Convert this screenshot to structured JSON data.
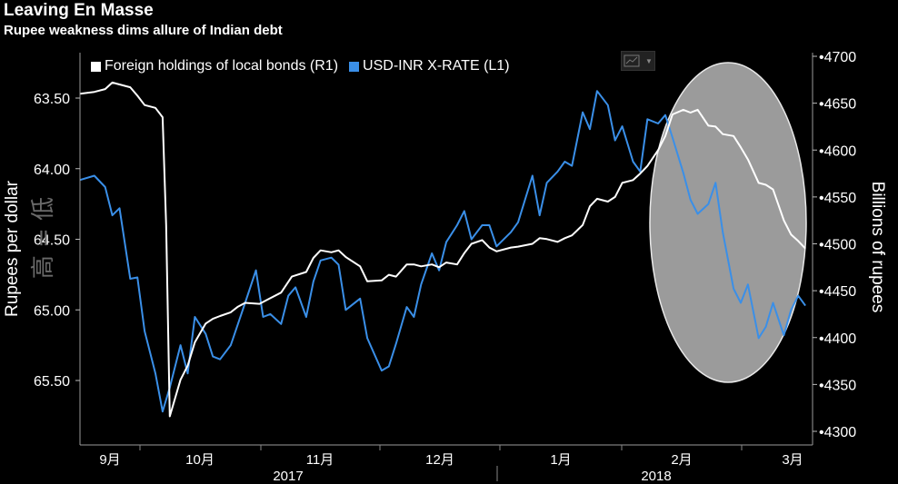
{
  "title": "Leaving En Masse",
  "subtitle": "Rupee weakness dims allure of Indian debt",
  "chart_data": {
    "type": "line",
    "legend": "top-left",
    "grid": false,
    "y_left": {
      "label": "Rupees per dollar",
      "range": [
        63.2,
        66.0
      ],
      "inverted": true,
      "ticks": [
        "63.50",
        "64.00",
        "64.50",
        "65.00",
        "65.50"
      ],
      "annotation": "高 = 低"
    },
    "y_right": {
      "label": "Billions of rupees",
      "range": [
        4290,
        4710
      ],
      "ticks": [
        "4700",
        "4650",
        "4600",
        "4550",
        "4500",
        "4450",
        "4400",
        "4350",
        "4300"
      ]
    },
    "x": {
      "months": [
        "9月",
        "10月",
        "11月",
        "12月",
        "1月",
        "2月",
        "3月"
      ],
      "years": [
        "2017",
        "2018"
      ],
      "range": [
        "2017-08-28",
        "2018-03-20"
      ]
    },
    "series": [
      {
        "name": "Foreign holdings of local bonds (R1)",
        "axis": "right",
        "color": "#ffffff",
        "points": [
          [
            "2017-08-28",
            4660
          ],
          [
            "2017-09-01",
            4662
          ],
          [
            "2017-09-04",
            4665
          ],
          [
            "2017-09-06",
            4672
          ],
          [
            "2017-09-08",
            4670
          ],
          [
            "2017-09-11",
            4667
          ],
          [
            "2017-09-13",
            4658
          ],
          [
            "2017-09-15",
            4648
          ],
          [
            "2017-09-18",
            4645
          ],
          [
            "2017-09-20",
            4635
          ],
          [
            "2017-09-21",
            4520
          ],
          [
            "2017-09-22",
            4316
          ],
          [
            "2017-09-25",
            4355
          ],
          [
            "2017-09-27",
            4370
          ],
          [
            "2017-09-29",
            4395
          ],
          [
            "2017-10-02",
            4415
          ],
          [
            "2017-10-04",
            4420
          ],
          [
            "2017-10-06",
            4423
          ],
          [
            "2017-10-09",
            4427
          ],
          [
            "2017-10-11",
            4433
          ],
          [
            "2017-10-13",
            4437
          ],
          [
            "2017-10-17",
            4436
          ],
          [
            "2017-10-19",
            4440
          ],
          [
            "2017-10-23",
            4448
          ],
          [
            "2017-10-26",
            4465
          ],
          [
            "2017-10-30",
            4470
          ],
          [
            "2017-11-01",
            4485
          ],
          [
            "2017-11-03",
            4493
          ],
          [
            "2017-11-06",
            4491
          ],
          [
            "2017-11-08",
            4493
          ],
          [
            "2017-11-10",
            4486
          ],
          [
            "2017-11-14",
            4476
          ],
          [
            "2017-11-16",
            4460
          ],
          [
            "2017-11-20",
            4461
          ],
          [
            "2017-11-22",
            4467
          ],
          [
            "2017-11-24",
            4465
          ],
          [
            "2017-11-27",
            4478
          ],
          [
            "2017-11-29",
            4478
          ],
          [
            "2017-12-01",
            4476
          ],
          [
            "2017-12-04",
            4478
          ],
          [
            "2017-12-06",
            4475
          ],
          [
            "2017-12-08",
            4480
          ],
          [
            "2017-12-11",
            4478
          ],
          [
            "2017-12-13",
            4490
          ],
          [
            "2017-12-15",
            4500
          ],
          [
            "2017-12-18",
            4504
          ],
          [
            "2017-12-20",
            4496
          ],
          [
            "2017-12-22",
            4492
          ],
          [
            "2017-12-26",
            4496
          ],
          [
            "2017-12-28",
            4497
          ],
          [
            "2018-01-01",
            4500
          ],
          [
            "2018-01-03",
            4506
          ],
          [
            "2018-01-05",
            4505
          ],
          [
            "2018-01-08",
            4502
          ],
          [
            "2018-01-10",
            4506
          ],
          [
            "2018-01-12",
            4509
          ],
          [
            "2018-01-15",
            4520
          ],
          [
            "2018-01-17",
            4540
          ],
          [
            "2018-01-19",
            4548
          ],
          [
            "2018-01-22",
            4545
          ],
          [
            "2018-01-24",
            4550
          ],
          [
            "2018-01-26",
            4565
          ],
          [
            "2018-01-29",
            4568
          ],
          [
            "2018-01-31",
            4575
          ],
          [
            "2018-02-02",
            4583
          ],
          [
            "2018-02-05",
            4600
          ],
          [
            "2018-02-07",
            4615
          ],
          [
            "2018-02-09",
            4638
          ],
          [
            "2018-02-12",
            4643
          ],
          [
            "2018-02-14",
            4640
          ],
          [
            "2018-02-16",
            4643
          ],
          [
            "2018-02-19",
            4626
          ],
          [
            "2018-02-21",
            4625
          ],
          [
            "2018-02-23",
            4617
          ],
          [
            "2018-02-26",
            4615
          ],
          [
            "2018-02-28",
            4603
          ],
          [
            "2018-03-02",
            4590
          ],
          [
            "2018-03-05",
            4565
          ],
          [
            "2018-03-07",
            4563
          ],
          [
            "2018-03-09",
            4558
          ],
          [
            "2018-03-12",
            4525
          ],
          [
            "2018-03-14",
            4510
          ],
          [
            "2018-03-16",
            4503
          ],
          [
            "2018-03-18",
            4495
          ]
        ]
      },
      {
        "name": "USD-INR X-RATE (L1)",
        "axis": "left",
        "color": "#3a8fe8",
        "points": [
          [
            "2017-08-28",
            64.08
          ],
          [
            "2017-09-01",
            64.05
          ],
          [
            "2017-09-04",
            64.13
          ],
          [
            "2017-09-06",
            64.33
          ],
          [
            "2017-09-08",
            64.28
          ],
          [
            "2017-09-11",
            64.78
          ],
          [
            "2017-09-13",
            64.77
          ],
          [
            "2017-09-15",
            65.15
          ],
          [
            "2017-09-18",
            65.45
          ],
          [
            "2017-09-20",
            65.72
          ],
          [
            "2017-09-22",
            65.55
          ],
          [
            "2017-09-25",
            65.25
          ],
          [
            "2017-09-27",
            65.45
          ],
          [
            "2017-09-29",
            65.05
          ],
          [
            "2017-10-02",
            65.17
          ],
          [
            "2017-10-04",
            65.33
          ],
          [
            "2017-10-06",
            65.35
          ],
          [
            "2017-10-09",
            65.25
          ],
          [
            "2017-10-11",
            65.1
          ],
          [
            "2017-10-13",
            64.95
          ],
          [
            "2017-10-16",
            64.72
          ],
          [
            "2017-10-18",
            65.05
          ],
          [
            "2017-10-20",
            65.03
          ],
          [
            "2017-10-23",
            65.1
          ],
          [
            "2017-10-25",
            64.9
          ],
          [
            "2017-10-27",
            64.84
          ],
          [
            "2017-10-30",
            65.05
          ],
          [
            "2017-11-01",
            64.8
          ],
          [
            "2017-11-03",
            64.65
          ],
          [
            "2017-11-06",
            64.63
          ],
          [
            "2017-11-08",
            64.68
          ],
          [
            "2017-11-10",
            65.0
          ],
          [
            "2017-11-14",
            64.92
          ],
          [
            "2017-11-16",
            65.2
          ],
          [
            "2017-11-20",
            65.43
          ],
          [
            "2017-11-22",
            65.4
          ],
          [
            "2017-11-24",
            65.24
          ],
          [
            "2017-11-27",
            64.98
          ],
          [
            "2017-11-29",
            65.05
          ],
          [
            "2017-12-01",
            64.82
          ],
          [
            "2017-12-04",
            64.6
          ],
          [
            "2017-12-06",
            64.72
          ],
          [
            "2017-12-08",
            64.52
          ],
          [
            "2017-12-11",
            64.4
          ],
          [
            "2017-12-13",
            64.3
          ],
          [
            "2017-12-15",
            64.5
          ],
          [
            "2017-12-18",
            64.4
          ],
          [
            "2017-12-20",
            64.4
          ],
          [
            "2017-12-22",
            64.55
          ],
          [
            "2017-12-26",
            64.45
          ],
          [
            "2017-12-28",
            64.38
          ],
          [
            "2018-01-01",
            64.05
          ],
          [
            "2018-01-03",
            64.33
          ],
          [
            "2018-01-05",
            64.1
          ],
          [
            "2018-01-08",
            64.02
          ],
          [
            "2018-01-10",
            63.95
          ],
          [
            "2018-01-12",
            63.98
          ],
          [
            "2018-01-15",
            63.6
          ],
          [
            "2018-01-17",
            63.72
          ],
          [
            "2018-01-19",
            63.45
          ],
          [
            "2018-01-22",
            63.55
          ],
          [
            "2018-01-24",
            63.8
          ],
          [
            "2018-01-26",
            63.7
          ],
          [
            "2018-01-29",
            63.95
          ],
          [
            "2018-01-31",
            64.02
          ],
          [
            "2018-02-02",
            63.65
          ],
          [
            "2018-02-05",
            63.68
          ],
          [
            "2018-02-07",
            63.62
          ],
          [
            "2018-02-09",
            63.78
          ],
          [
            "2018-02-12",
            64.03
          ],
          [
            "2018-02-14",
            64.22
          ],
          [
            "2018-02-16",
            64.32
          ],
          [
            "2018-02-19",
            64.25
          ],
          [
            "2018-02-21",
            64.1
          ],
          [
            "2018-02-23",
            64.45
          ],
          [
            "2018-02-26",
            64.85
          ],
          [
            "2018-02-28",
            64.95
          ],
          [
            "2018-03-02",
            64.82
          ],
          [
            "2018-03-05",
            65.2
          ],
          [
            "2018-03-07",
            65.12
          ],
          [
            "2018-03-09",
            64.95
          ],
          [
            "2018-03-12",
            65.18
          ],
          [
            "2018-03-14",
            65.0
          ],
          [
            "2018-03-16",
            64.9
          ],
          [
            "2018-03-18",
            64.97
          ]
        ]
      }
    ]
  }
}
